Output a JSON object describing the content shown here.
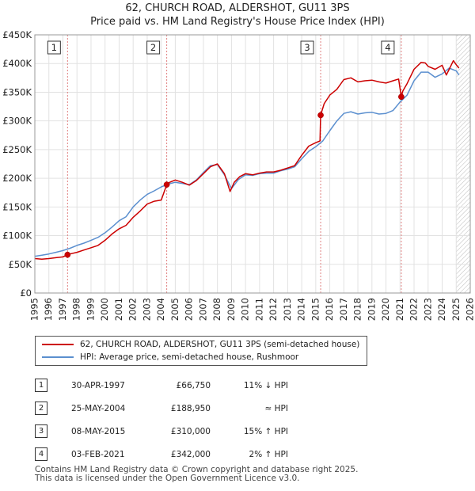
{
  "title_line1": "62, CHURCH ROAD, ALDERSHOT, GU11 3PS",
  "title_line2": "Price paid vs. HM Land Registry's House Price Index (HPI)",
  "chart_data": {
    "type": "line",
    "title": "62, CHURCH ROAD, ALDERSHOT, GU11 3PS — Price paid vs. HM Land Registry's House Price Index (HPI)",
    "xlabel": "",
    "ylabel": "",
    "xlim": [
      1995,
      2026
    ],
    "ylim": [
      0,
      450000
    ],
    "x_ticks": [
      1995,
      1996,
      1997,
      1998,
      1999,
      2000,
      2001,
      2002,
      2003,
      2004,
      2005,
      2006,
      2007,
      2008,
      2009,
      2010,
      2011,
      2012,
      2013,
      2014,
      2015,
      2016,
      2017,
      2018,
      2019,
      2020,
      2021,
      2022,
      2023,
      2024,
      2025,
      2026
    ],
    "y_ticks": [
      {
        "value": 0,
        "label": "£0"
      },
      {
        "value": 50000,
        "label": "£50K"
      },
      {
        "value": 100000,
        "label": "£100K"
      },
      {
        "value": 150000,
        "label": "£150K"
      },
      {
        "value": 200000,
        "label": "£200K"
      },
      {
        "value": 250000,
        "label": "£250K"
      },
      {
        "value": 300000,
        "label": "£300K"
      },
      {
        "value": 350000,
        "label": "£350K"
      },
      {
        "value": 400000,
        "label": "£400K"
      },
      {
        "value": 450000,
        "label": "£450K"
      }
    ],
    "grid": true,
    "series": [
      {
        "name": "62, CHURCH ROAD, ALDERSHOT, GU11 3PS (semi-detached house)",
        "color": "#cc0000",
        "x": [
          1995.0,
          1995.5,
          1996.0,
          1996.5,
          1997.0,
          1997.33,
          1997.5,
          1998.0,
          1998.5,
          1999.0,
          1999.5,
          2000.0,
          2000.5,
          2001.0,
          2001.5,
          2002.0,
          2002.5,
          2003.0,
          2003.5,
          2004.0,
          2004.39,
          2004.6,
          2005.0,
          2005.5,
          2006.0,
          2006.5,
          2007.0,
          2007.5,
          2008.0,
          2008.5,
          2008.9,
          2009.2,
          2009.6,
          2010.0,
          2010.5,
          2011.0,
          2011.5,
          2012.0,
          2012.5,
          2013.0,
          2013.5,
          2014.0,
          2014.5,
          2015.0,
          2015.3,
          2015.35,
          2015.6,
          2016.0,
          2016.5,
          2017.0,
          2017.5,
          2018.0,
          2018.5,
          2019.0,
          2019.5,
          2020.0,
          2020.5,
          2020.9,
          2021.09,
          2021.2,
          2021.5,
          2022.0,
          2022.5,
          2022.8,
          2023.0,
          2023.5,
          2024.0,
          2024.3,
          2024.5,
          2024.8,
          2025.0,
          2025.2
        ],
        "values": [
          60000,
          59000,
          60000,
          61500,
          63000,
          66750,
          68000,
          71000,
          75000,
          79000,
          83000,
          92000,
          103000,
          112000,
          118000,
          132000,
          143000,
          155000,
          160000,
          162000,
          188950,
          193000,
          197000,
          193000,
          188000,
          196000,
          208000,
          220000,
          225000,
          208000,
          177000,
          193000,
          203000,
          208000,
          206000,
          209000,
          211000,
          211000,
          214000,
          218000,
          222000,
          240000,
          256000,
          262000,
          265000,
          310000,
          330000,
          345000,
          355000,
          372000,
          375000,
          368000,
          370000,
          371000,
          368000,
          366000,
          370000,
          373000,
          342000,
          352000,
          365000,
          390000,
          402000,
          401000,
          395000,
          390000,
          397000,
          380000,
          390000,
          405000,
          398000,
          392000
        ]
      },
      {
        "name": "HPI: Average price, semi-detached house, Rushmoor",
        "color": "#5b8fcf",
        "x": [
          1995.0,
          1995.5,
          1996.0,
          1996.5,
          1997.0,
          1997.5,
          1998.0,
          1998.5,
          1999.0,
          1999.5,
          2000.0,
          2000.5,
          2001.0,
          2001.5,
          2002.0,
          2002.5,
          2003.0,
          2003.5,
          2004.0,
          2004.5,
          2005.0,
          2005.5,
          2006.0,
          2006.5,
          2007.0,
          2007.5,
          2008.0,
          2008.5,
          2009.0,
          2009.5,
          2010.0,
          2010.5,
          2011.0,
          2011.5,
          2012.0,
          2012.5,
          2013.0,
          2013.5,
          2014.0,
          2014.5,
          2015.0,
          2015.5,
          2016.0,
          2016.5,
          2017.0,
          2017.5,
          2018.0,
          2018.5,
          2019.0,
          2019.5,
          2020.0,
          2020.5,
          2021.0,
          2021.5,
          2022.0,
          2022.5,
          2023.0,
          2023.5,
          2024.0,
          2024.5,
          2025.0,
          2025.2
        ],
        "values": [
          64000,
          66000,
          68000,
          71000,
          74000,
          78000,
          83000,
          87000,
          92000,
          97000,
          105000,
          115000,
          126000,
          133000,
          150000,
          162000,
          172000,
          178000,
          185000,
          190000,
          193000,
          191000,
          189000,
          197000,
          210000,
          222000,
          224000,
          206000,
          182000,
          198000,
          206000,
          205000,
          208000,
          209000,
          209000,
          213000,
          216000,
          220000,
          234000,
          247000,
          255000,
          265000,
          283000,
          300000,
          313000,
          316000,
          312000,
          314000,
          315000,
          312000,
          313000,
          318000,
          333000,
          345000,
          370000,
          385000,
          385000,
          376000,
          382000,
          392000,
          387000,
          380000
        ]
      }
    ],
    "annotations": [
      {
        "label": "1",
        "x": 1997.33
      },
      {
        "label": "2",
        "x": 2004.39
      },
      {
        "label": "3",
        "x": 2015.35
      },
      {
        "label": "4",
        "x": 2021.09
      }
    ],
    "sale_points": [
      {
        "x": 1997.33,
        "value": 66750
      },
      {
        "x": 2004.39,
        "value": 188950
      },
      {
        "x": 2015.35,
        "value": 310000
      },
      {
        "x": 2021.09,
        "value": 342000
      }
    ],
    "forecast_start": 2025.0
  },
  "legend": {
    "items": [
      {
        "label": "62, CHURCH ROAD, ALDERSHOT, GU11 3PS (semi-detached house)",
        "color": "#cc0000"
      },
      {
        "label": "HPI: Average price, semi-detached house, Rushmoor",
        "color": "#5b8fcf"
      }
    ]
  },
  "sales": [
    {
      "num": "1",
      "date": "30-APR-1997",
      "price": "£66,750",
      "hpi": "11% ↓ HPI"
    },
    {
      "num": "2",
      "date": "25-MAY-2004",
      "price": "£188,950",
      "hpi": "≈ HPI"
    },
    {
      "num": "3",
      "date": "08-MAY-2015",
      "price": "£310,000",
      "hpi": "15% ↑ HPI"
    },
    {
      "num": "4",
      "date": "03-FEB-2021",
      "price": "£342,000",
      "hpi": "2% ↑ HPI"
    }
  ],
  "footer": {
    "line1": "Contains HM Land Registry data © Crown copyright and database right 2025.",
    "line2": "This data is licensed under the Open Government Licence v3.0."
  }
}
